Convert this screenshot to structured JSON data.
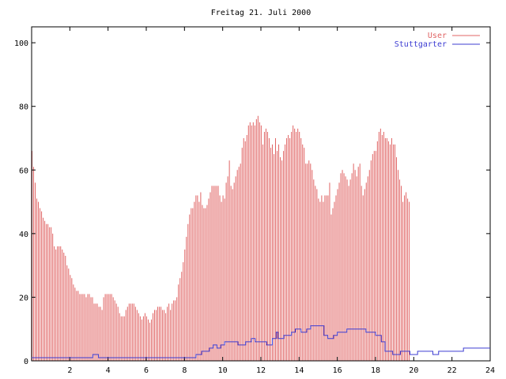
{
  "chart_data": {
    "type": "bar",
    "title": "Freitag 21. Juli 2000",
    "xlabel": "",
    "ylabel": "",
    "xlim": [
      0,
      24
    ],
    "ylim": [
      0,
      105
    ],
    "x_ticks": [
      2,
      4,
      6,
      8,
      10,
      12,
      14,
      16,
      18,
      20,
      22,
      24
    ],
    "y_ticks": [
      0,
      20,
      40,
      60,
      80,
      100
    ],
    "grid": false,
    "legend_position": "top-right",
    "x_step_hours": 0.0833,
    "series": [
      {
        "name": "User",
        "style": "impulses",
        "color": "#e06464",
        "values": [
          66,
          61,
          56,
          51,
          50,
          48,
          47,
          45,
          44,
          43,
          43,
          42,
          42,
          40,
          36,
          35,
          36,
          36,
          36,
          35,
          34,
          33,
          30,
          29,
          27,
          26,
          24,
          23,
          22,
          22,
          21,
          21,
          21,
          21,
          20,
          21,
          21,
          20,
          20,
          18,
          18,
          18,
          17,
          17,
          16,
          20,
          21,
          21,
          21,
          21,
          21,
          20,
          19,
          18,
          17,
          15,
          14,
          14,
          14,
          16,
          17,
          18,
          18,
          18,
          18,
          17,
          16,
          15,
          14,
          13,
          14,
          15,
          14,
          13,
          12,
          13,
          15,
          16,
          16,
          17,
          17,
          17,
          16,
          16,
          15,
          17,
          18,
          16,
          18,
          19,
          19,
          20,
          24,
          26,
          28,
          31,
          35,
          39,
          43,
          46,
          48,
          48,
          50,
          52,
          52,
          50,
          53,
          49,
          48,
          48,
          49,
          51,
          53,
          55,
          55,
          55,
          55,
          55,
          52,
          50,
          52,
          51,
          56,
          58,
          63,
          55,
          54,
          56,
          58,
          60,
          61,
          62,
          67,
          70,
          69,
          71,
          74,
          75,
          74,
          75,
          74,
          76,
          77,
          75,
          74,
          68,
          72,
          73,
          72,
          70,
          67,
          68,
          65,
          70,
          66,
          68,
          64,
          63,
          66,
          68,
          70,
          71,
          70,
          72,
          74,
          73,
          72,
          73,
          72,
          70,
          68,
          67,
          62,
          62,
          63,
          62,
          60,
          57,
          55,
          54,
          51,
          50,
          52,
          50,
          52,
          52,
          52,
          56,
          46,
          48,
          50,
          52,
          54,
          56,
          59,
          60,
          59,
          58,
          57,
          55,
          57,
          59,
          62,
          60,
          58,
          61,
          62,
          55,
          52,
          54,
          56,
          58,
          60,
          63,
          65,
          66,
          66,
          69,
          72,
          73,
          71,
          72,
          70,
          70,
          69,
          68,
          70,
          68,
          68,
          64,
          60,
          57,
          55,
          50,
          52,
          53,
          51,
          50
        ]
      },
      {
        "name": "Stuttgarter",
        "style": "steps",
        "color": "#3c3cd2",
        "points": [
          [
            0,
            1
          ],
          [
            3.1,
            1
          ],
          [
            3.2,
            2
          ],
          [
            3.5,
            1
          ],
          [
            8.5,
            1
          ],
          [
            8.6,
            2
          ],
          [
            8.9,
            3
          ],
          [
            9.3,
            4
          ],
          [
            9.5,
            5
          ],
          [
            9.7,
            4
          ],
          [
            9.9,
            5
          ],
          [
            10.1,
            6
          ],
          [
            10.8,
            5
          ],
          [
            11.2,
            6
          ],
          [
            11.5,
            7
          ],
          [
            11.7,
            6
          ],
          [
            12.3,
            5
          ],
          [
            12.6,
            7
          ],
          [
            12.8,
            9
          ],
          [
            12.9,
            7
          ],
          [
            13.2,
            8
          ],
          [
            13.6,
            9
          ],
          [
            13.8,
            10
          ],
          [
            14.1,
            9
          ],
          [
            14.4,
            10
          ],
          [
            14.6,
            11
          ],
          [
            15.1,
            11
          ],
          [
            15.3,
            8
          ],
          [
            15.5,
            7
          ],
          [
            15.8,
            8
          ],
          [
            16.0,
            9
          ],
          [
            16.5,
            10
          ],
          [
            17.5,
            9
          ],
          [
            18.0,
            8
          ],
          [
            18.3,
            6
          ],
          [
            18.5,
            3
          ],
          [
            18.9,
            2
          ],
          [
            19.3,
            3
          ],
          [
            19.8,
            2
          ],
          [
            20.2,
            3
          ],
          [
            21.0,
            2
          ],
          [
            21.3,
            3
          ],
          [
            22.5,
            3
          ],
          [
            22.6,
            4
          ],
          [
            24,
            4
          ]
        ]
      }
    ]
  }
}
